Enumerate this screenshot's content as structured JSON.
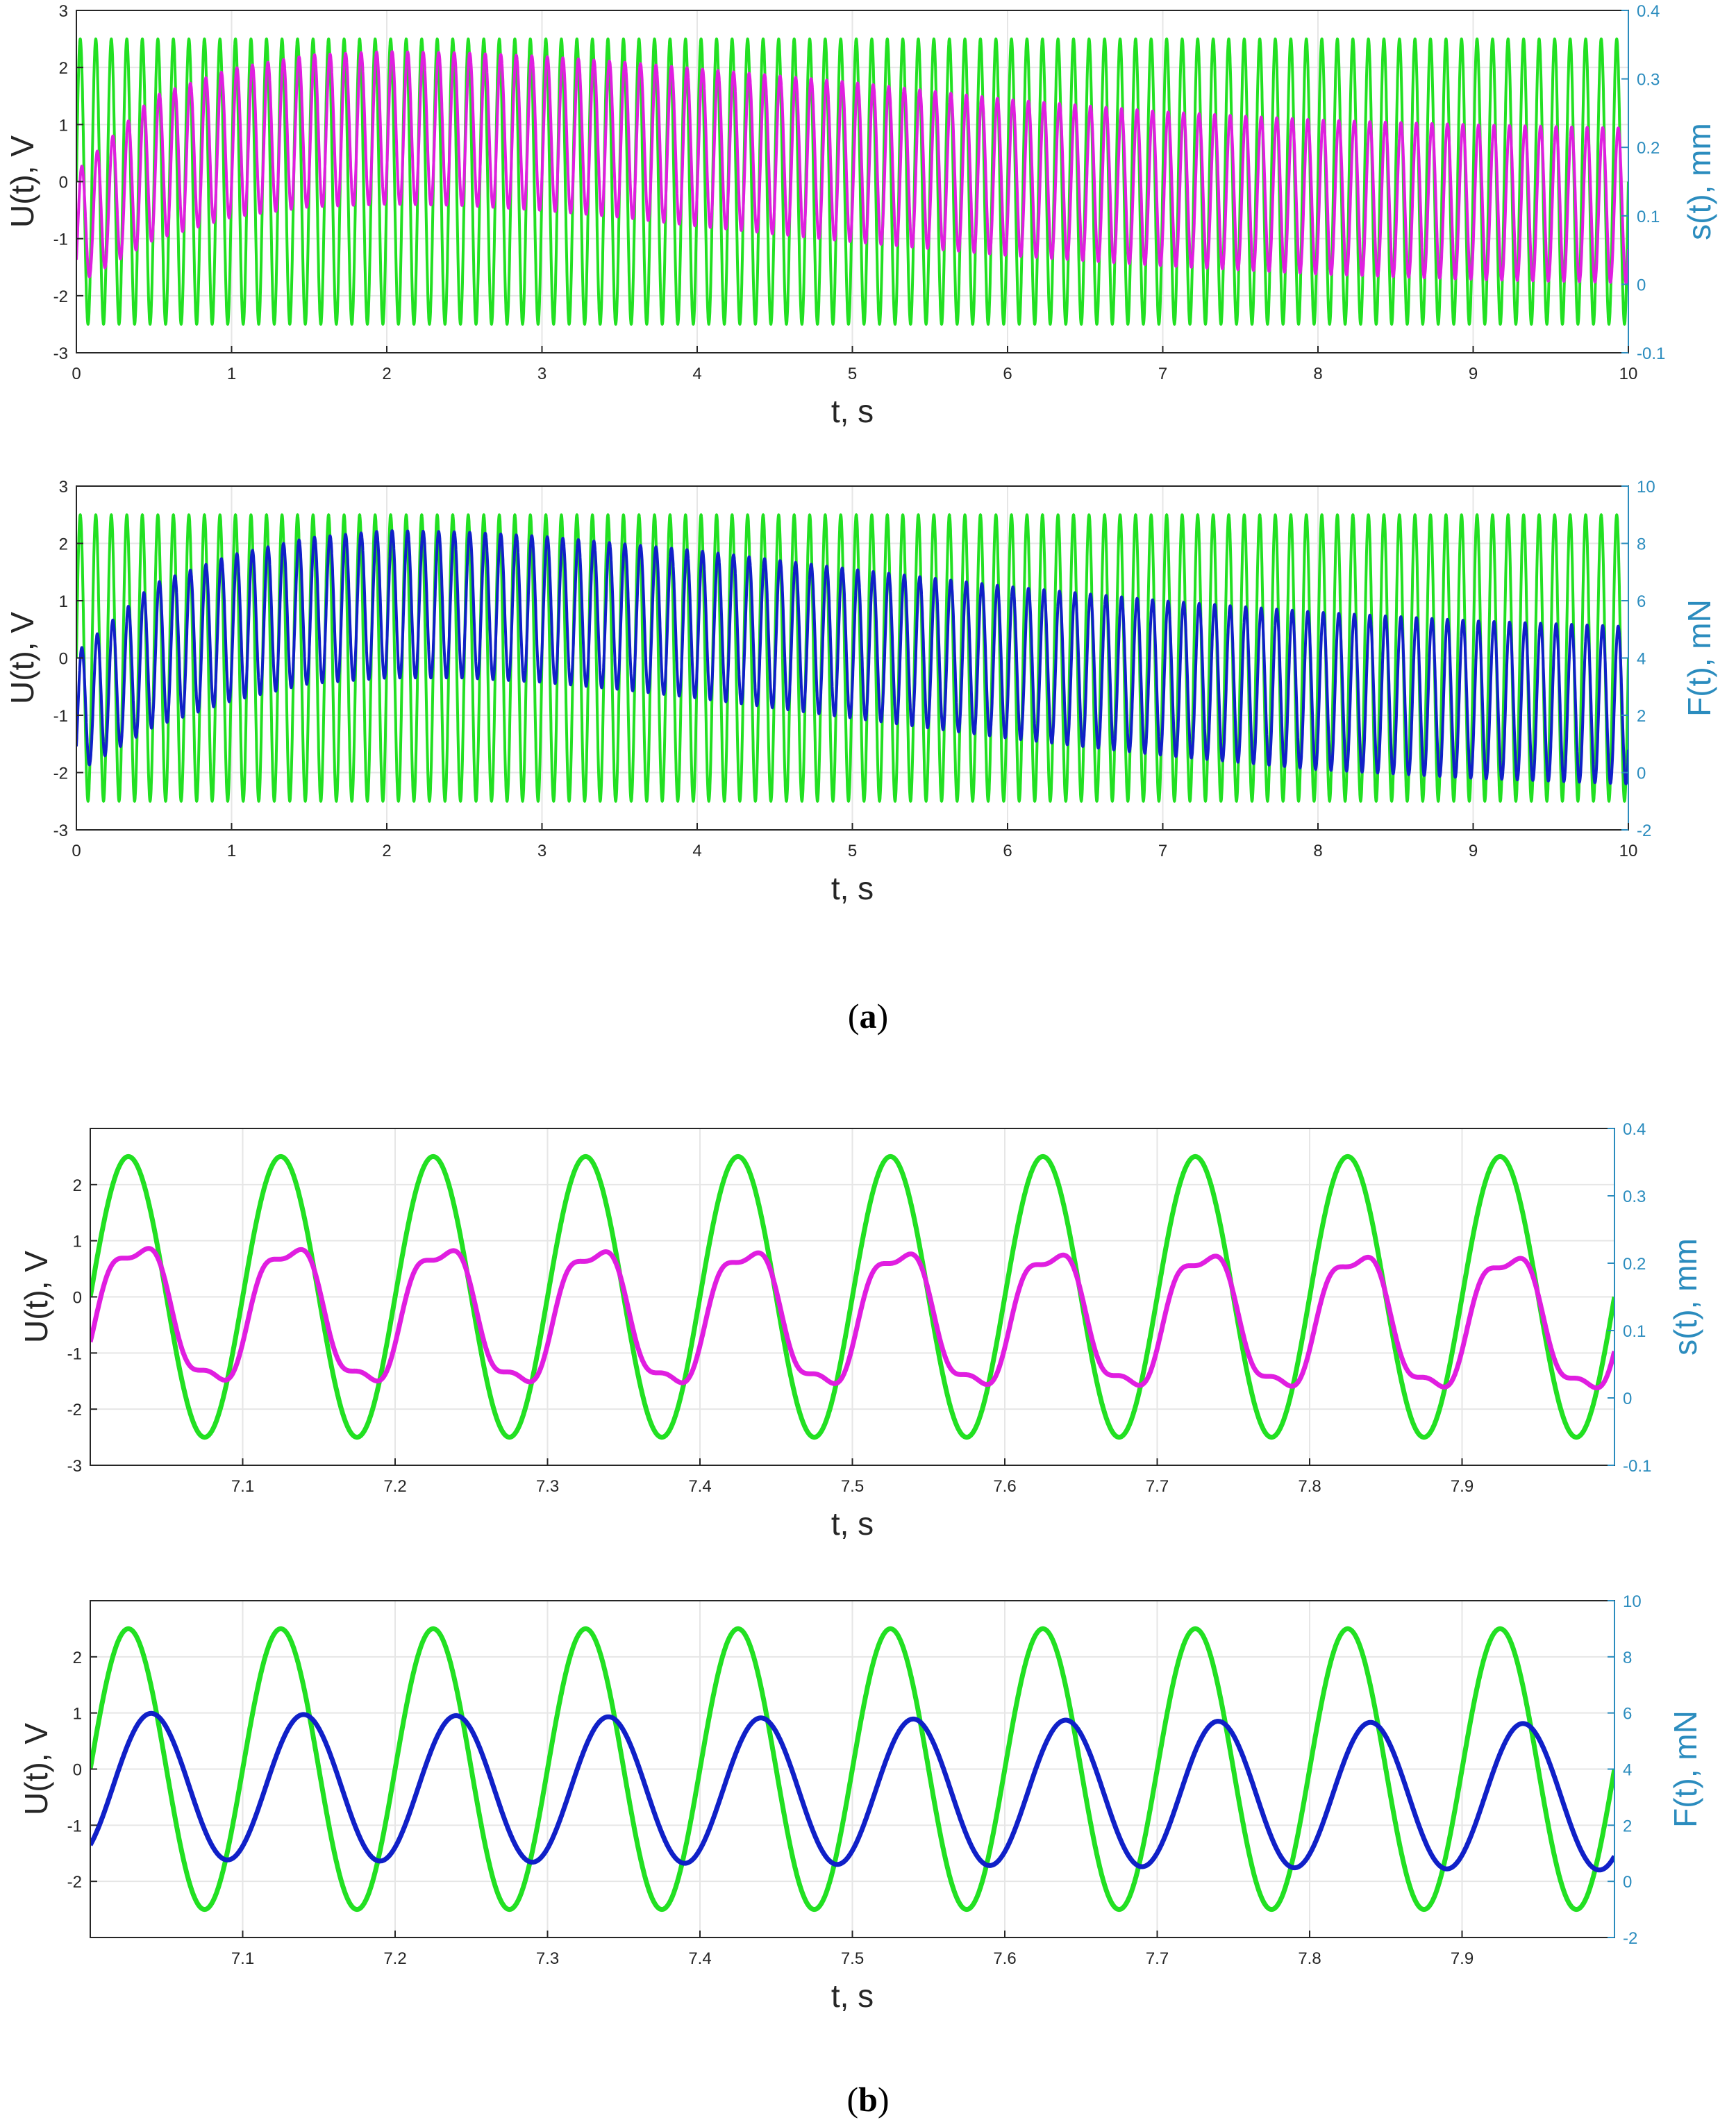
{
  "colors": {
    "voltage": "#22e022",
    "displacement": "#e01ee0",
    "force": "#1020c8",
    "right_axis": "#2b8cbe",
    "grid": "#e6e6e6",
    "axis": "#262626"
  },
  "captions": {
    "a": {
      "open": "(",
      "letter": "a",
      "close": ")"
    },
    "b": {
      "open": "(",
      "letter": "b",
      "close": ")"
    }
  },
  "chart_data": [
    {
      "type": "line",
      "panel": "a-top",
      "xlabel": "t, s",
      "ylabel": "U(t), V",
      "ylabel_right": "s(t), mm",
      "xlim": [
        0,
        10
      ],
      "ylim": [
        -3,
        3
      ],
      "ylim_right": [
        -0.1,
        0.4
      ],
      "xticks": [
        "0",
        "1",
        "2",
        "3",
        "4",
        "5",
        "6",
        "7",
        "8",
        "9",
        "10"
      ],
      "yticks": [
        "-3",
        "-2",
        "-1",
        "0",
        "1",
        "2",
        "3"
      ],
      "yticks_right": [
        "-0.1",
        "0",
        "0.1",
        "0.2",
        "0.3",
        "0.4"
      ],
      "grid": true,
      "series": [
        {
          "color_key": "voltage",
          "axis": "left",
          "kind": "sine",
          "frequency_hz": 10,
          "amplitude": 2.5,
          "phase": 0
        },
        {
          "color_key": "displacement",
          "axis": "right",
          "kind": "sine-envelope",
          "frequency_hz": 10,
          "envelope_t": [
            0,
            0.5,
            1,
            1.5,
            2,
            2.5,
            3,
            3.5,
            4,
            5,
            6,
            7,
            8,
            9,
            10
          ],
          "upper": [
            0.165,
            0.275,
            0.315,
            0.335,
            0.34,
            0.338,
            0.333,
            0.325,
            0.315,
            0.295,
            0.27,
            0.252,
            0.24,
            0.233,
            0.228
          ],
          "lower": [
            0.0,
            0.065,
            0.098,
            0.113,
            0.117,
            0.115,
            0.108,
            0.098,
            0.085,
            0.062,
            0.042,
            0.027,
            0.015,
            0.007,
            0.002
          ]
        }
      ]
    },
    {
      "type": "line",
      "panel": "a-bottom",
      "xlabel": "t, s",
      "ylabel": "U(t), V",
      "ylabel_right": "F(t), mN",
      "xlim": [
        0,
        10
      ],
      "ylim": [
        -3,
        3
      ],
      "ylim_right": [
        -2,
        10
      ],
      "xticks": [
        "0",
        "1",
        "2",
        "3",
        "4",
        "5",
        "6",
        "7",
        "8",
        "9",
        "10"
      ],
      "yticks": [
        "-3",
        "-2",
        "-1",
        "0",
        "1",
        "2",
        "3"
      ],
      "yticks_right": [
        "-2",
        "0",
        "2",
        "4",
        "6",
        "8",
        "10"
      ],
      "grid": true,
      "series": [
        {
          "color_key": "voltage",
          "axis": "left",
          "kind": "sine",
          "frequency_hz": 10,
          "amplitude": 2.5,
          "phase": 0
        },
        {
          "color_key": "force",
          "axis": "right",
          "kind": "sine-envelope",
          "frequency_hz": 10,
          "envelope_t": [
            0,
            0.5,
            1,
            1.5,
            2,
            2.5,
            3,
            3.5,
            4,
            5,
            6,
            7,
            8,
            9,
            10
          ],
          "upper": [
            4.2,
            6.6,
            7.6,
            8.2,
            8.45,
            8.4,
            8.25,
            8.0,
            7.75,
            7.1,
            6.5,
            6.0,
            5.6,
            5.3,
            5.1
          ],
          "lower": [
            0.0,
            1.6,
            2.5,
            3.1,
            3.3,
            3.3,
            3.15,
            2.9,
            2.6,
            1.9,
            1.2,
            0.6,
            0.1,
            -0.2,
            -0.4
          ]
        }
      ]
    },
    {
      "type": "line",
      "panel": "b-top",
      "xlabel": "t, s",
      "ylabel": "U(t), V",
      "ylabel_right": "s(t), mm",
      "xlim": [
        7.0,
        8.0
      ],
      "ylim": [
        -3,
        3
      ],
      "ylim_right": [
        -0.1,
        0.4
      ],
      "xticks": [
        "7.1",
        "7.2",
        "7.3",
        "7.4",
        "7.5",
        "7.6",
        "7.7",
        "7.8",
        "7.9"
      ],
      "yticks": [
        "-3",
        "-2",
        "-1",
        "0",
        "1",
        "2"
      ],
      "yticks_right": [
        "-0.1",
        "0",
        "0.1",
        "0.2",
        "0.3",
        "0.4"
      ],
      "grid": true,
      "series": [
        {
          "color_key": "voltage",
          "axis": "left",
          "kind": "sine",
          "frequency_hz": 10,
          "amplitude": 2.5,
          "phase": 0
        },
        {
          "color_key": "displacement",
          "axis": "left",
          "kind": "harmonic",
          "description_values": {
            "max_at_7_03": 1.1,
            "min_at_7_09": -1.7,
            "max_at_7_93": 0.9,
            "min_at_7_99": -1.85
          }
        }
      ]
    },
    {
      "type": "line",
      "panel": "b-bottom",
      "xlabel": "t, s",
      "ylabel": "U(t), V",
      "ylabel_right": "F(t), mN",
      "xlim": [
        7.0,
        8.0
      ],
      "ylim": [
        -3,
        3
      ],
      "ylim_right": [
        -2,
        10
      ],
      "xticks": [
        "7.1",
        "7.2",
        "7.3",
        "7.4",
        "7.5",
        "7.6",
        "7.7",
        "7.8",
        "7.9"
      ],
      "yticks": [
        "-2",
        "-1",
        "0",
        "1",
        "2"
      ],
      "yticks_right": [
        "-2",
        "0",
        "2",
        "4",
        "6",
        "8",
        "10"
      ],
      "grid": true,
      "series": [
        {
          "color_key": "voltage",
          "axis": "left",
          "kind": "sine",
          "frequency_hz": 10,
          "amplitude": 2.5,
          "phase": 0
        },
        {
          "color_key": "force",
          "axis": "left",
          "kind": "sine",
          "description_values": {
            "max_at_7_04": 1.0,
            "min_at_7_09": -1.6,
            "max_at_7_94": 0.8,
            "min_at_7_99": -1.8
          }
        }
      ]
    }
  ]
}
